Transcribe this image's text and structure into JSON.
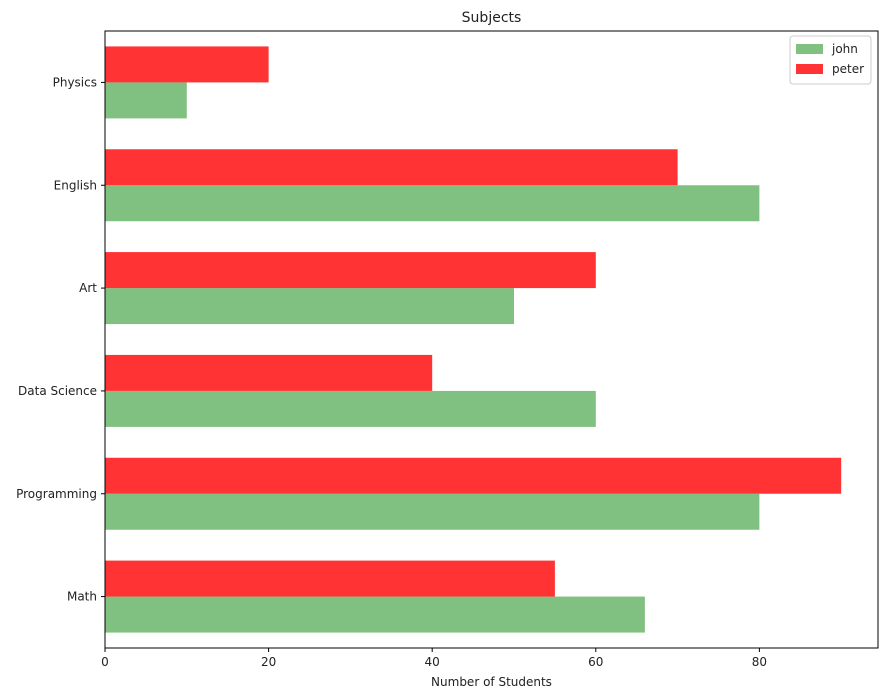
{
  "chart_data": {
    "type": "bar",
    "orientation": "horizontal",
    "title": "Subjects",
    "xlabel": "Number of Students",
    "ylabel": "",
    "categories": [
      "Math",
      "Programming",
      "Data Science",
      "Art",
      "English",
      "Physics"
    ],
    "series": [
      {
        "name": "john",
        "values": [
          66,
          80,
          60,
          50,
          80,
          10
        ],
        "color": "#80c080"
      },
      {
        "name": "peter",
        "values": [
          55,
          90,
          40,
          60,
          70,
          20
        ],
        "color": "#ff3333"
      }
    ],
    "xlim": [
      0,
      94.5
    ],
    "xticks": [
      0,
      20,
      40,
      60,
      80
    ],
    "grid": false,
    "legend_position": "top-right"
  }
}
